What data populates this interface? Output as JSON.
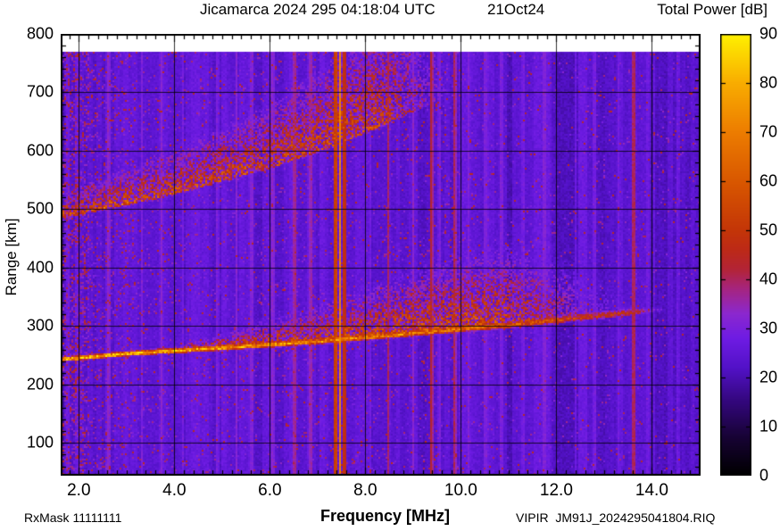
{
  "header": {
    "title": "Jicamarca 2024 295 04:18:04 UTC",
    "date": "21Oct24",
    "colorbar_title": "Total Power [dB]"
  },
  "axes": {
    "x_label": "Frequency [MHz]",
    "y_label": "Range [km]"
  },
  "footer": {
    "rxmask": "RxMask 11111111",
    "filename": "VIPIR  JM91J_2024295041804.RIQ"
  },
  "chart_data": {
    "type": "heatmap",
    "title": "Jicamarca 2024 295 04:18:04 UTC   21Oct24",
    "xlabel": "Frequency [MHz]",
    "ylabel": "Range [km]",
    "zlabel": "Total Power [dB]",
    "x_range": [
      1.62,
      15.02
    ],
    "y_range": [
      44,
      800
    ],
    "z_range": [
      0,
      90
    ],
    "data_top_km": 770,
    "grid": true,
    "legend_position": "right-colorbar",
    "x_ticks": {
      "values": [
        2,
        4,
        6,
        8,
        10,
        12,
        14
      ],
      "labels": [
        "2.0",
        "4.0",
        "6.0",
        "8.0",
        "10.0",
        "12.0",
        "14.0"
      ],
      "minor_step": 0.2
    },
    "y_ticks": {
      "values": [
        100,
        200,
        300,
        400,
        500,
        600,
        700,
        800
      ],
      "labels": [
        "100",
        "200",
        "300",
        "400",
        "500",
        "600",
        "700",
        "800"
      ],
      "minor_step": 20
    },
    "colorbar_ticks": {
      "values": [
        0,
        10,
        20,
        30,
        40,
        50,
        60,
        70,
        80,
        90
      ],
      "labels": [
        "0",
        "10",
        "20",
        "30",
        "40",
        "50",
        "60",
        "70",
        "80",
        "90"
      ]
    },
    "colormap": [
      {
        "v": 0,
        "c": "#000000"
      },
      {
        "v": 8,
        "c": "#180336"
      },
      {
        "v": 15,
        "c": "#33077c"
      },
      {
        "v": 22,
        "c": "#5312c8"
      },
      {
        "v": 28,
        "c": "#6f1ce4"
      },
      {
        "v": 33,
        "c": "#8c28cf"
      },
      {
        "v": 38,
        "c": "#a62580"
      },
      {
        "v": 42,
        "c": "#b32437"
      },
      {
        "v": 46,
        "c": "#bd2a18"
      },
      {
        "v": 50,
        "c": "#c43608"
      },
      {
        "v": 60,
        "c": "#d95800"
      },
      {
        "v": 70,
        "c": "#ed7d00"
      },
      {
        "v": 80,
        "c": "#f9ad00"
      },
      {
        "v": 90,
        "c": "#fff200"
      }
    ],
    "background_db": 25,
    "noise_seed": 77,
    "features": {
      "f_region_trace_km": [
        [
          1.62,
          242
        ],
        [
          3,
          252
        ],
        [
          5,
          262
        ],
        [
          7,
          273
        ],
        [
          9,
          287
        ],
        [
          11,
          301
        ],
        [
          13,
          318
        ],
        [
          15.1,
          336
        ]
      ],
      "f_trace_peak_db": 84,
      "spread_f_cloud_height_km": [
        [
          4.2,
          18
        ],
        [
          5,
          30
        ],
        [
          6,
          55
        ],
        [
          7,
          80
        ],
        [
          8,
          110
        ],
        [
          9,
          140
        ],
        [
          10,
          165
        ],
        [
          11,
          170
        ],
        [
          12,
          160
        ],
        [
          13.5,
          125
        ],
        [
          15.1,
          95
        ]
      ],
      "spread_f_cloud_db": 50,
      "second_hop_trace_km": [
        [
          1.62,
          487
        ],
        [
          3,
          510
        ],
        [
          4,
          528
        ],
        [
          5,
          550
        ],
        [
          6,
          572
        ],
        [
          7,
          600
        ],
        [
          8,
          632
        ],
        [
          9,
          668
        ],
        [
          10,
          706
        ],
        [
          11.2,
          752
        ]
      ],
      "second_hop_height_km": [
        [
          1.62,
          42
        ],
        [
          3,
          58
        ],
        [
          5,
          88
        ],
        [
          6,
          108
        ],
        [
          7,
          138
        ],
        [
          8,
          178
        ],
        [
          9,
          205
        ],
        [
          11.2,
          225
        ]
      ],
      "second_hop_db": 47,
      "rfi_lines_mhz": [
        {
          "f": 2.62,
          "w": 0.03,
          "dv": 7
        },
        {
          "f": 3.32,
          "w": 0.03,
          "dv": 6
        },
        {
          "f": 3.72,
          "w": 0.025,
          "dv": 6
        },
        {
          "f": 4.17,
          "w": 0.025,
          "dv": 7
        },
        {
          "f": 4.9,
          "w": 0.03,
          "dv": 8
        },
        {
          "f": 5.3,
          "w": 0.03,
          "dv": 8
        },
        {
          "f": 5.62,
          "w": 0.025,
          "dv": 6
        },
        {
          "f": 6.06,
          "w": 0.03,
          "dv": 7
        },
        {
          "f": 6.52,
          "w": 0.035,
          "dv": 13
        },
        {
          "f": 6.86,
          "w": 0.03,
          "dv": 11
        },
        {
          "f": 7.38,
          "w": 0.045,
          "dv": 30
        },
        {
          "f": 7.47,
          "w": 0.03,
          "dv": 46
        },
        {
          "f": 7.56,
          "w": 0.04,
          "dv": 26
        },
        {
          "f": 8.1,
          "w": 0.025,
          "dv": 6
        },
        {
          "f": 8.48,
          "w": 0.035,
          "dv": 14
        },
        {
          "f": 9.0,
          "w": 0.03,
          "dv": 8
        },
        {
          "f": 9.38,
          "w": 0.04,
          "dv": 20
        },
        {
          "f": 9.55,
          "w": 0.025,
          "dv": 7
        },
        {
          "f": 9.87,
          "w": 0.035,
          "dv": 18
        },
        {
          "f": 10.17,
          "w": 0.03,
          "dv": 9
        },
        {
          "f": 10.5,
          "w": 0.04,
          "dv": 6
        },
        {
          "f": 10.85,
          "w": 0.04,
          "dv": 8
        },
        {
          "f": 11.3,
          "w": 0.035,
          "dv": 7
        },
        {
          "f": 11.75,
          "w": 0.03,
          "dv": 5
        },
        {
          "f": 12.4,
          "w": 0.03,
          "dv": 6
        },
        {
          "f": 12.8,
          "w": 0.03,
          "dv": 6
        },
        {
          "f": 13.3,
          "w": 0.03,
          "dv": 5
        },
        {
          "f": 13.62,
          "w": 0.05,
          "dv": 16
        },
        {
          "f": 14.05,
          "w": 0.03,
          "dv": 5
        },
        {
          "f": 14.55,
          "w": 0.03,
          "dv": 5
        },
        {
          "f": 10.35,
          "w": 0.2,
          "dv": -2.5
        },
        {
          "f": 11.05,
          "w": 0.25,
          "dv": -2.5
        },
        {
          "f": 12.15,
          "w": 0.3,
          "dv": -3
        },
        {
          "f": 13.05,
          "w": 0.2,
          "dv": -2.5
        },
        {
          "f": 14.25,
          "w": 0.25,
          "dv": -3
        },
        {
          "f": 14.7,
          "w": 0.2,
          "dv": -2.5
        },
        {
          "f": 5.85,
          "w": 0.15,
          "dv": -1.5
        },
        {
          "f": 9.15,
          "w": 0.12,
          "dv": -2
        }
      ]
    }
  }
}
